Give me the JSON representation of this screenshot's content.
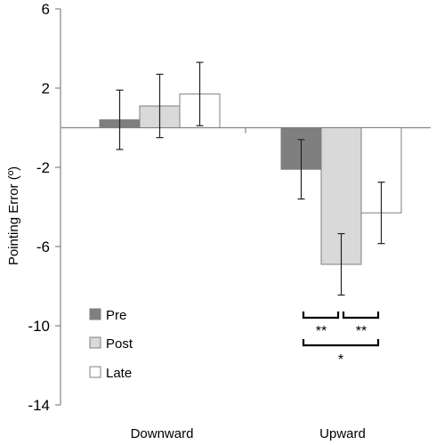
{
  "chart_data": {
    "type": "bar",
    "title": "",
    "xlabel": "",
    "ylabel": "Pointing Error (º)",
    "ylim": [
      -14,
      6
    ],
    "yticks": [
      6,
      2,
      -2,
      -6,
      -10,
      -14
    ],
    "categories": [
      "Downward",
      "Upward"
    ],
    "series": [
      {
        "name": "Pre",
        "color": "#7f7f7f",
        "values": [
          0.4,
          -2.1
        ],
        "errors": [
          1.5,
          1.5
        ]
      },
      {
        "name": "Post",
        "color": "#d9d9d9",
        "values": [
          1.1,
          -6.9
        ],
        "errors": [
          1.6,
          1.55
        ]
      },
      {
        "name": "Late",
        "color": "#ffffff",
        "values": [
          1.7,
          -4.3
        ],
        "errors": [
          1.6,
          1.55
        ]
      }
    ],
    "legend_position": "bottom-left",
    "grid": false,
    "significance": [
      {
        "label": "**",
        "between": [
          "Pre",
          "Post"
        ],
        "category": "Upward"
      },
      {
        "label": "**",
        "between": [
          "Post",
          "Late"
        ],
        "category": "Upward"
      },
      {
        "label": "*",
        "between": [
          "Pre",
          "Late"
        ],
        "category": "Upward"
      }
    ]
  }
}
